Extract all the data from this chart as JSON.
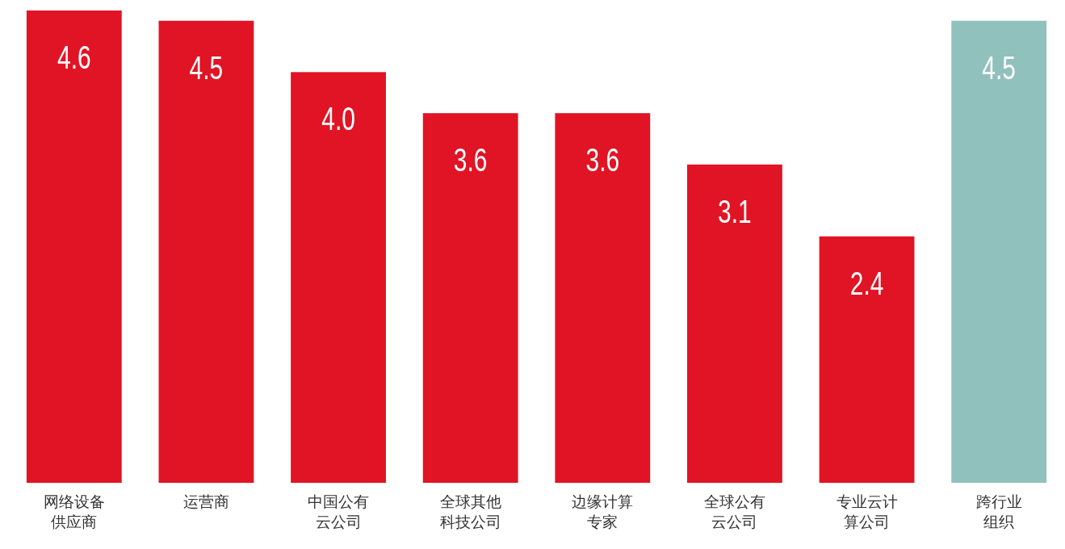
{
  "chart_data": {
    "type": "bar",
    "categories": [
      "网络设备供应商",
      "运营商",
      "中国公有云公司",
      "全球其他科技公司",
      "边缘计算专家",
      "全球公有云公司",
      "专业云计算公司",
      "跨行业组织"
    ],
    "values": [
      4.6,
      4.5,
      4.0,
      3.6,
      3.6,
      3.1,
      2.4,
      4.5
    ],
    "value_labels": [
      "4.6",
      "4.5",
      "4.0",
      "3.6",
      "3.6",
      "3.1",
      "2.4",
      "4.5"
    ],
    "colors": [
      "#e01424",
      "#e01424",
      "#e01424",
      "#e01424",
      "#e01424",
      "#e01424",
      "#e01424",
      "#91c1bd"
    ]
  }
}
